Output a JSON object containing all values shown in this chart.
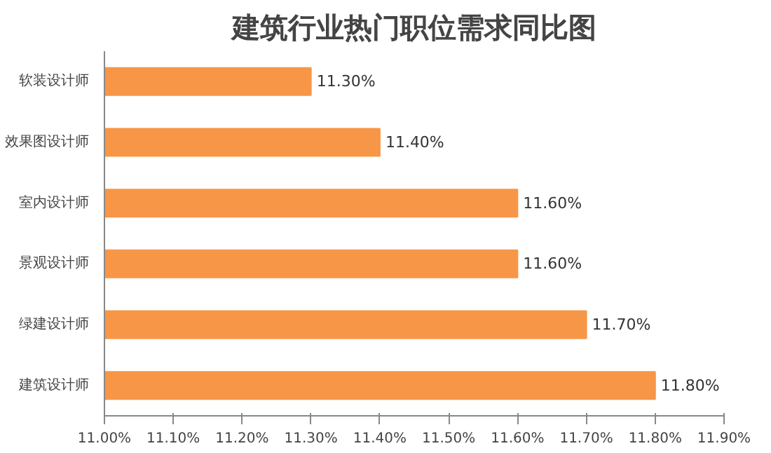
{
  "chart_data": {
    "type": "bar",
    "orientation": "horizontal",
    "title": "建筑行业热门职位需求同比图",
    "categories": [
      "软装设计师",
      "效果图设计师",
      "室内设计师",
      "景观设计师",
      "绿建设计师",
      "建筑设计师"
    ],
    "values": [
      11.3,
      11.4,
      11.6,
      11.6,
      11.7,
      11.8
    ],
    "value_labels": [
      "11.30%",
      "11.40%",
      "11.60%",
      "11.60%",
      "11.70%",
      "11.80%"
    ],
    "color": "#f79646",
    "xlim": [
      11.0,
      11.9
    ],
    "xticks": [
      {
        "value": 11.0,
        "label": "11.00%"
      },
      {
        "value": 11.1,
        "label": "11.10%"
      },
      {
        "value": 11.2,
        "label": "11.20%"
      },
      {
        "value": 11.3,
        "label": "11.30%"
      },
      {
        "value": 11.4,
        "label": "11.40%"
      },
      {
        "value": 11.5,
        "label": "11.50%"
      },
      {
        "value": 11.6,
        "label": "11.60%"
      },
      {
        "value": 11.7,
        "label": "11.70%"
      },
      {
        "value": 11.8,
        "label": "11.80%"
      },
      {
        "value": 11.9,
        "label": "11.90%"
      }
    ],
    "grid": false
  }
}
